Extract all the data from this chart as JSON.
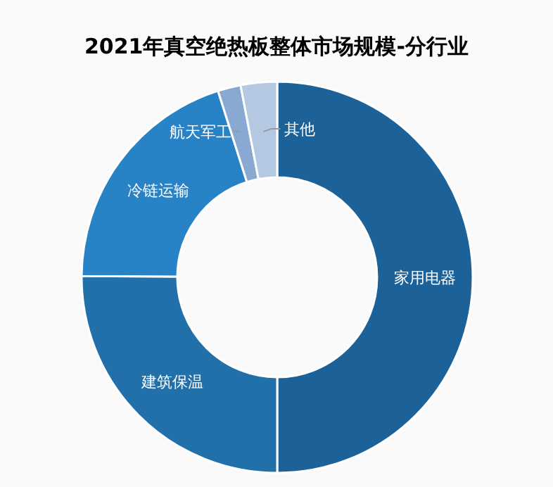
{
  "chart_data": {
    "type": "donut",
    "title": "2021年真空绝热板整体市场规模-分行业",
    "categories": [
      "家用电器",
      "建筑保温",
      "冷链运输",
      "航天军工",
      "其他"
    ],
    "values": [
      50,
      25.1,
      20,
      1.9,
      3
    ],
    "colors": [
      "#1c6298",
      "#2170aa",
      "#2882c6",
      "#89a9d2",
      "#b4c8e2"
    ]
  }
}
